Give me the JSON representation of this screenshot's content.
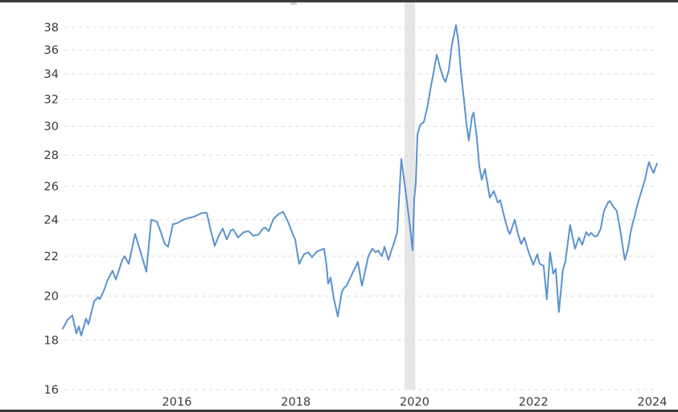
{
  "page": {
    "background": "#ffffff"
  },
  "borders": {
    "top_color": "#3b3b3b",
    "bottom_color": "#3b3b3b"
  },
  "chart_data": {
    "type": "line",
    "title": "",
    "xlabel": "",
    "ylabel": "",
    "legend": "none",
    "grid": "horizontal-dashed",
    "y_scale": "log",
    "x_ticks": [
      "2016",
      "2018",
      "2020",
      "2022",
      "2024"
    ],
    "x_tick_years": [
      2016,
      2018,
      2020,
      2022,
      2024
    ],
    "y_ticks": [
      16,
      18,
      20,
      22,
      24,
      26,
      28,
      30,
      32,
      34,
      36,
      38
    ],
    "x_range": [
      2014.05,
      2024.12
    ],
    "y_range": [
      16,
      38.6
    ],
    "colors": {
      "line": "#5b93ce",
      "grid": "#d8d8d8",
      "band": "#e6e6e6",
      "tick_text": "#3a3a3a"
    },
    "recession_band": {
      "from": 2019.83,
      "to": 2020.01
    },
    "series": [
      {
        "name": "value",
        "points": [
          [
            2014.078,
            18.5
          ],
          [
            2014.159,
            18.9
          ],
          [
            2014.24,
            19.1
          ],
          [
            2014.308,
            18.3
          ],
          [
            2014.348,
            18.6
          ],
          [
            2014.389,
            18.2
          ],
          [
            2014.47,
            18.95
          ],
          [
            2014.511,
            18.7
          ],
          [
            2014.606,
            19.75
          ],
          [
            2014.673,
            19.95
          ],
          [
            2014.7,
            19.85
          ],
          [
            2014.768,
            20.25
          ],
          [
            2014.836,
            20.8
          ],
          [
            2014.917,
            21.25
          ],
          [
            2014.971,
            20.8
          ],
          [
            2015.079,
            21.8
          ],
          [
            2015.12,
            22.0
          ],
          [
            2015.188,
            21.6
          ],
          [
            2015.296,
            23.2
          ],
          [
            2015.391,
            22.2
          ],
          [
            2015.486,
            21.2
          ],
          [
            2015.567,
            24.0
          ],
          [
            2015.662,
            23.9
          ],
          [
            2015.729,
            23.3
          ],
          [
            2015.797,
            22.65
          ],
          [
            2015.851,
            22.5
          ],
          [
            2015.932,
            23.75
          ],
          [
            2016.0,
            23.8
          ],
          [
            2016.108,
            24.0
          ],
          [
            2016.19,
            24.1
          ],
          [
            2016.271,
            24.15
          ],
          [
            2016.365,
            24.3
          ],
          [
            2016.433,
            24.4
          ],
          [
            2016.501,
            24.4
          ],
          [
            2016.569,
            23.4
          ],
          [
            2016.636,
            22.55
          ],
          [
            2016.704,
            23.1
          ],
          [
            2016.772,
            23.5
          ],
          [
            2016.839,
            22.9
          ],
          [
            2016.907,
            23.4
          ],
          [
            2016.948,
            23.45
          ],
          [
            2017.029,
            23.0
          ],
          [
            2017.123,
            23.3
          ],
          [
            2017.205,
            23.35
          ],
          [
            2017.286,
            23.1
          ],
          [
            2017.367,
            23.15
          ],
          [
            2017.448,
            23.5
          ],
          [
            2017.489,
            23.55
          ],
          [
            2017.543,
            23.35
          ],
          [
            2017.624,
            24.05
          ],
          [
            2017.719,
            24.35
          ],
          [
            2017.787,
            24.45
          ],
          [
            2017.868,
            23.9
          ],
          [
            2017.936,
            23.3
          ],
          [
            2017.99,
            22.9
          ],
          [
            2018.058,
            21.6
          ],
          [
            2018.139,
            22.1
          ],
          [
            2018.206,
            22.2
          ],
          [
            2018.274,
            21.95
          ],
          [
            2018.355,
            22.25
          ],
          [
            2018.477,
            22.4
          ],
          [
            2018.518,
            21.5
          ],
          [
            2018.545,
            20.6
          ],
          [
            2018.585,
            20.9
          ],
          [
            2018.639,
            19.9
          ],
          [
            2018.707,
            19.05
          ],
          [
            2018.775,
            20.2
          ],
          [
            2018.815,
            20.4
          ],
          [
            2018.856,
            20.5
          ],
          [
            2018.91,
            20.85
          ],
          [
            2018.951,
            21.1
          ],
          [
            2019.046,
            21.7
          ],
          [
            2019.113,
            20.5
          ],
          [
            2019.221,
            22.0
          ],
          [
            2019.289,
            22.4
          ],
          [
            2019.343,
            22.2
          ],
          [
            2019.384,
            22.3
          ],
          [
            2019.451,
            22.0
          ],
          [
            2019.492,
            22.5
          ],
          [
            2019.56,
            21.8
          ],
          [
            2019.614,
            22.35
          ],
          [
            2019.654,
            22.7
          ],
          [
            2019.708,
            23.3
          ],
          [
            2019.776,
            27.75
          ],
          [
            2019.83,
            26.2
          ],
          [
            2019.898,
            24.3
          ],
          [
            2019.966,
            22.3
          ],
          [
            2019.993,
            25.2
          ],
          [
            2020.02,
            26.2
          ],
          [
            2020.047,
            29.4
          ],
          [
            2020.087,
            30.0
          ],
          [
            2020.114,
            30.2
          ],
          [
            2020.155,
            30.3
          ],
          [
            2020.223,
            31.6
          ],
          [
            2020.263,
            32.7
          ],
          [
            2020.331,
            34.45
          ],
          [
            2020.372,
            35.6
          ],
          [
            2020.426,
            34.55
          ],
          [
            2020.48,
            33.7
          ],
          [
            2020.52,
            33.35
          ],
          [
            2020.575,
            34.3
          ],
          [
            2020.629,
            36.5
          ],
          [
            2020.696,
            38.2
          ],
          [
            2020.737,
            36.8
          ],
          [
            2020.778,
            34.2
          ],
          [
            2020.832,
            31.9
          ],
          [
            2020.872,
            30.2
          ],
          [
            2020.913,
            29.0
          ],
          [
            2020.967,
            30.7
          ],
          [
            2020.994,
            31.0
          ],
          [
            2021.048,
            29.2
          ],
          [
            2021.089,
            27.3
          ],
          [
            2021.13,
            26.4
          ],
          [
            2021.184,
            27.1
          ],
          [
            2021.265,
            25.3
          ],
          [
            2021.333,
            25.7
          ],
          [
            2021.401,
            25.0
          ],
          [
            2021.441,
            25.15
          ],
          [
            2021.522,
            24.0
          ],
          [
            2021.577,
            23.35
          ],
          [
            2021.604,
            23.2
          ],
          [
            2021.685,
            24.0
          ],
          [
            2021.739,
            23.2
          ],
          [
            2021.793,
            22.65
          ],
          [
            2021.847,
            23.0
          ],
          [
            2021.915,
            22.25
          ],
          [
            2021.996,
            21.55
          ],
          [
            2022.064,
            22.1
          ],
          [
            2022.104,
            21.6
          ],
          [
            2022.171,
            21.5
          ],
          [
            2022.226,
            19.85
          ],
          [
            2022.28,
            22.2
          ],
          [
            2022.334,
            21.1
          ],
          [
            2022.375,
            21.35
          ],
          [
            2022.429,
            19.25
          ],
          [
            2022.496,
            21.3
          ],
          [
            2022.537,
            21.7
          ],
          [
            2022.618,
            23.7
          ],
          [
            2022.699,
            22.4
          ],
          [
            2022.767,
            23.0
          ],
          [
            2022.821,
            22.6
          ],
          [
            2022.889,
            23.3
          ],
          [
            2022.929,
            23.1
          ],
          [
            2022.97,
            23.25
          ],
          [
            2023.038,
            23.05
          ],
          [
            2023.078,
            23.1
          ],
          [
            2023.132,
            23.5
          ],
          [
            2023.186,
            24.5
          ],
          [
            2023.254,
            25.0
          ],
          [
            2023.281,
            25.1
          ],
          [
            2023.349,
            24.75
          ],
          [
            2023.403,
            24.5
          ],
          [
            2023.457,
            23.5
          ],
          [
            2023.498,
            22.6
          ],
          [
            2023.538,
            21.8
          ],
          [
            2023.592,
            22.4
          ],
          [
            2023.633,
            23.25
          ],
          [
            2023.674,
            23.85
          ],
          [
            2023.701,
            24.15
          ],
          [
            2023.741,
            24.75
          ],
          [
            2023.768,
            25.1
          ],
          [
            2023.822,
            25.75
          ],
          [
            2023.877,
            26.4
          ],
          [
            2023.904,
            26.9
          ],
          [
            2023.944,
            27.55
          ],
          [
            2023.985,
            27.1
          ],
          [
            2024.025,
            26.85
          ],
          [
            2024.079,
            27.45
          ]
        ]
      }
    ]
  }
}
